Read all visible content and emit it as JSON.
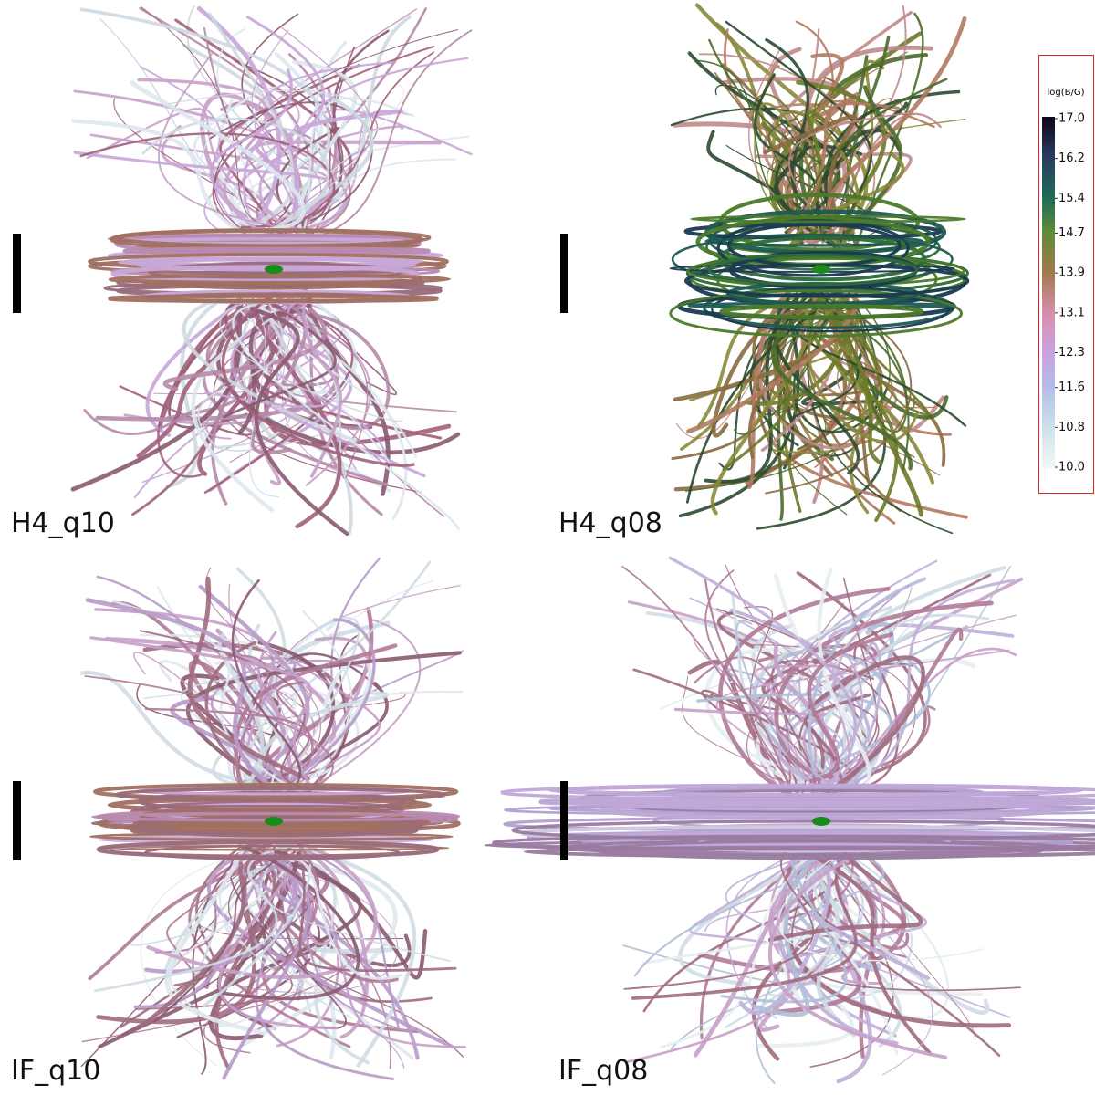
{
  "panels": [
    {
      "label": "H4_q10"
    },
    {
      "label": "H4_q08"
    },
    {
      "label": "IF_q10"
    },
    {
      "label": "IF_q08"
    }
  ],
  "colorbar": {
    "title": "log(B/G)",
    "lim": [
      10,
      17
    ],
    "ticks": [
      {
        "value": 10.0,
        "label": "10.0"
      },
      {
        "value": 10.8,
        "label": "10.8"
      },
      {
        "value": 11.6,
        "label": "11.6"
      },
      {
        "value": 12.3,
        "label": "12.3"
      },
      {
        "value": 13.1,
        "label": "13.1"
      },
      {
        "value": 13.9,
        "label": "13.9"
      },
      {
        "value": 14.7,
        "label": "14.7"
      },
      {
        "value": 15.4,
        "label": "15.4"
      },
      {
        "value": 16.2,
        "label": "16.2"
      },
      {
        "value": 17.0,
        "label": "17.0"
      }
    ]
  }
}
